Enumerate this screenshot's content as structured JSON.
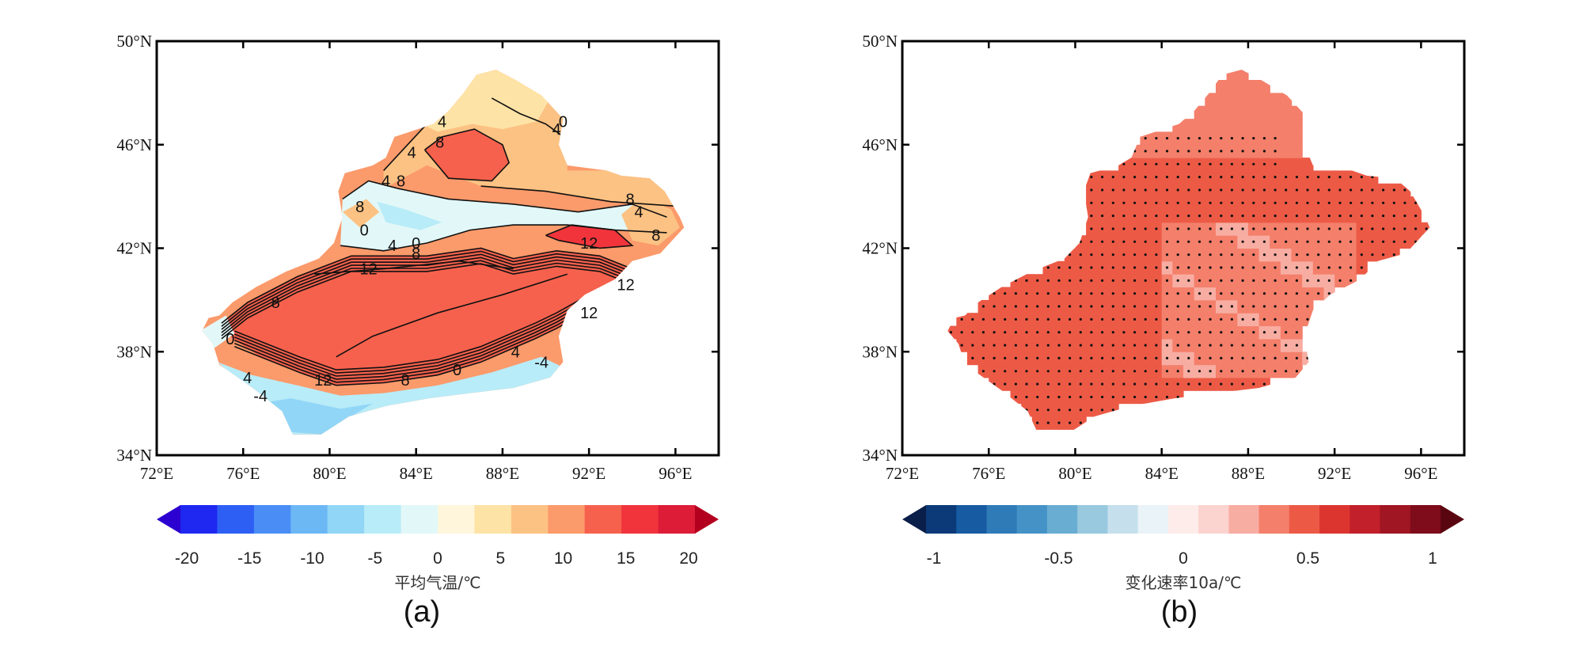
{
  "chart_data": [
    {
      "panel": "(a)",
      "type": "heatmap",
      "subtype": "filled contour map",
      "lon_ticks": [
        "72°E",
        "76°E",
        "80°E",
        "84°E",
        "88°E",
        "92°E",
        "96°E"
      ],
      "lat_ticks": [
        "50°N",
        "46°N",
        "42°N",
        "38°N",
        "34°N"
      ],
      "xlim": [
        72,
        98
      ],
      "ylim": [
        34,
        50
      ],
      "colorbar": {
        "title": "平均气温/℃",
        "tick_labels": [
          "-20",
          "-15",
          "-10",
          "-5",
          "0",
          "5",
          "10",
          "15",
          "20"
        ],
        "tick_values": [
          -20,
          -15,
          -10,
          -5,
          0,
          5,
          10,
          15,
          20
        ],
        "levels": [
          -20,
          -17.5,
          -15,
          -12.5,
          -10,
          -7.5,
          -5,
          -2.5,
          0,
          2.5,
          5,
          7.5,
          10,
          12.5,
          15,
          17.5,
          20
        ],
        "colors": [
          "#2c00d0",
          "#1e28f0",
          "#2e5ff5",
          "#4a8ef5",
          "#6cb8f5",
          "#92d6f7",
          "#b8ecf8",
          "#e2f8f8",
          "#fff6dc",
          "#fee3a6",
          "#fcc283",
          "#fb9a6b",
          "#f6614d",
          "#f1343c",
          "#dd1c37",
          "#b3001f"
        ]
      },
      "contour_labels": [
        {
          "text": "4",
          "lon": 85.2,
          "lat": 46.9
        },
        {
          "text": "0",
          "lon": 90.8,
          "lat": 46.9
        },
        {
          "text": "4",
          "lon": 90.5,
          "lat": 46.6
        },
        {
          "text": "4",
          "lon": 83.8,
          "lat": 45.7
        },
        {
          "text": "8",
          "lon": 85.1,
          "lat": 46.1
        },
        {
          "text": "4",
          "lon": 82.6,
          "lat": 44.6
        },
        {
          "text": "8",
          "lon": 83.3,
          "lat": 44.6
        },
        {
          "text": "8",
          "lon": 81.4,
          "lat": 43.6
        },
        {
          "text": "0",
          "lon": 81.6,
          "lat": 42.7
        },
        {
          "text": "4",
          "lon": 82.9,
          "lat": 42.1
        },
        {
          "text": "0",
          "lon": 84.0,
          "lat": 42.2
        },
        {
          "text": "8",
          "lon": 84.0,
          "lat": 41.8
        },
        {
          "text": "8",
          "lon": 93.9,
          "lat": 43.9
        },
        {
          "text": "4",
          "lon": 94.3,
          "lat": 43.4
        },
        {
          "text": "8",
          "lon": 95.1,
          "lat": 42.5
        },
        {
          "text": "12",
          "lon": 92.0,
          "lat": 42.2
        },
        {
          "text": "12",
          "lon": 81.8,
          "lat": 41.2
        },
        {
          "text": "12",
          "lon": 93.7,
          "lat": 40.6
        },
        {
          "text": "12",
          "lon": 92.0,
          "lat": 39.5
        },
        {
          "text": "8",
          "lon": 77.5,
          "lat": 39.9
        },
        {
          "text": "0",
          "lon": 75.4,
          "lat": 38.5
        },
        {
          "text": "4",
          "lon": 76.2,
          "lat": 37.0
        },
        {
          "text": "12",
          "lon": 79.7,
          "lat": 36.9
        },
        {
          "text": "8",
          "lon": 83.5,
          "lat": 36.9
        },
        {
          "text": "0",
          "lon": 85.9,
          "lat": 37.3
        },
        {
          "text": "4",
          "lon": 88.6,
          "lat": 38.0
        },
        {
          "text": "-4",
          "lon": 89.8,
          "lat": 37.6
        },
        {
          "text": "-4",
          "lon": 76.8,
          "lat": 36.3
        }
      ]
    },
    {
      "panel": "(b)",
      "type": "heatmap",
      "subtype": "gridded trend map with significance stippling",
      "lon_ticks": [
        "72°E",
        "76°E",
        "80°E",
        "84°E",
        "88°E",
        "92°E",
        "96°E"
      ],
      "lat_ticks": [
        "50°N",
        "46°N",
        "42°N",
        "38°N",
        "34°N"
      ],
      "xlim": [
        72,
        98
      ],
      "ylim": [
        34,
        50
      ],
      "colorbar": {
        "title": "变化速率10a/℃",
        "tick_labels": [
          "-1",
          "-0.5",
          "0",
          "0.5",
          "1"
        ],
        "tick_values": [
          -1,
          -0.5,
          0,
          0.5,
          1
        ],
        "colors": [
          "#0a1e4a",
          "#0c3a78",
          "#175ba2",
          "#2f7bb8",
          "#4593c6",
          "#6aadd2",
          "#98c9df",
          "#c5e0ec",
          "#eaf3f8",
          "#fdecea",
          "#fbd3cf",
          "#f8ada2",
          "#f47f6b",
          "#ec5a46",
          "#dc3530",
          "#c2202a",
          "#a01622",
          "#7e0c1a",
          "#5a0610"
        ]
      },
      "trend_range_observed": [
        0.2,
        0.5
      ],
      "stippling": "dots mark statistically significant grid cells"
    }
  ],
  "panel_labels": [
    "(a)",
    "(b)"
  ]
}
